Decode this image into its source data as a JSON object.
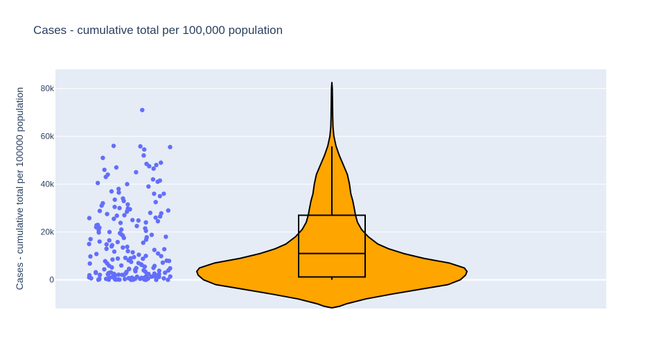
{
  "chart_data": {
    "type": "violin",
    "title": "Cases - cumulative total per 100,000 population",
    "ylabel": "Cases - cumulative total per 100000 population",
    "xlabel": "",
    "ylim": [
      -12000,
      88000
    ],
    "yticks": [
      {
        "value": 0,
        "label": "0"
      },
      {
        "value": 20000,
        "label": "20k"
      },
      {
        "value": 40000,
        "label": "40k"
      },
      {
        "value": 60000,
        "label": "60k"
      },
      {
        "value": 80000,
        "label": "80k"
      }
    ],
    "grid": true,
    "legend": "none",
    "violin": {
      "fill": "#FFA500",
      "line": "#000000",
      "kde_max_value": 82500,
      "kde_min_value": -11700,
      "max_half_width_at": 3500,
      "profile": [
        [
          -11700,
          0.0
        ],
        [
          -11000,
          0.06
        ],
        [
          -10000,
          0.11
        ],
        [
          -8000,
          0.25
        ],
        [
          -6000,
          0.44
        ],
        [
          -4000,
          0.65
        ],
        [
          -2000,
          0.86
        ],
        [
          0,
          0.95
        ],
        [
          2000,
          0.99
        ],
        [
          3500,
          1.0
        ],
        [
          5000,
          0.98
        ],
        [
          7000,
          0.87
        ],
        [
          9000,
          0.68
        ],
        [
          11000,
          0.53
        ],
        [
          13000,
          0.42
        ],
        [
          15000,
          0.34
        ],
        [
          18000,
          0.27
        ],
        [
          21000,
          0.22
        ],
        [
          24000,
          0.19
        ],
        [
          27000,
          0.175
        ],
        [
          30000,
          0.165
        ],
        [
          33000,
          0.155
        ],
        [
          36000,
          0.14
        ],
        [
          40000,
          0.13
        ],
        [
          44000,
          0.115
        ],
        [
          48000,
          0.085
        ],
        [
          52000,
          0.055
        ],
        [
          56000,
          0.03
        ],
        [
          60000,
          0.015
        ],
        [
          64000,
          0.008
        ],
        [
          68000,
          0.006
        ],
        [
          72000,
          0.005
        ],
        [
          76000,
          0.004
        ],
        [
          80000,
          0.003
        ],
        [
          82500,
          0.0
        ]
      ]
    },
    "box": {
      "q1": 1200,
      "median": 11000,
      "q3": 27000,
      "lower_fence": 0,
      "upper_fence": 55800,
      "line": "#000000"
    },
    "points": {
      "color": "#636efa",
      "values": [
        71000,
        56000,
        55800,
        55500,
        54500,
        52000,
        51000,
        49000,
        48500,
        48000,
        47500,
        47000,
        46500,
        46000,
        45000,
        44000,
        43000,
        42000,
        41500,
        41000,
        40500,
        40000,
        39000,
        38000,
        37000,
        36500,
        36000,
        35000,
        34000,
        33000,
        32500,
        32000,
        31000,
        30500,
        30000,
        29500,
        29000,
        28500,
        28000,
        27500,
        27000,
        26500,
        26000,
        25500,
        25000,
        24500,
        24000,
        23000,
        22500,
        22000,
        21500,
        21000,
        20500,
        20000,
        19500,
        19000,
        18500,
        18000,
        17500,
        17000,
        16500,
        16000,
        15500,
        15000,
        14500,
        14000,
        13500,
        13000,
        12500,
        12000,
        11500,
        11000,
        10500,
        10000,
        9800,
        9500,
        9200,
        9000,
        8800,
        8500,
        8200,
        8000,
        7800,
        7500,
        7200,
        7000,
        6800,
        6500,
        6200,
        6000,
        5800,
        5500,
        5200,
        5000,
        4800,
        4600,
        4400,
        4200,
        4000,
        3800,
        3600,
        3400,
        3200,
        3000,
        2900,
        2800,
        2700,
        2600,
        2500,
        2400,
        2300,
        2200,
        2100,
        2000,
        1900,
        1800,
        1700,
        1600,
        1500,
        1400,
        1300,
        1200,
        1100,
        1000,
        950,
        900,
        850,
        800,
        750,
        700,
        650,
        600,
        550,
        500,
        450,
        400,
        350,
        300,
        250,
        200,
        150,
        100,
        80,
        60,
        40,
        20,
        10,
        5,
        2,
        0,
        36000,
        33500,
        31500,
        29800,
        28800,
        27800,
        26800,
        25800,
        24800,
        23800,
        22800,
        21800,
        20800,
        19800,
        18800,
        17800,
        16800,
        15800,
        14800,
        13800,
        12800,
        11800,
        10800,
        9900,
        8900,
        7900,
        6900,
        5900,
        4900,
        3900,
        2950,
        2450,
        1950,
        1450,
        1150,
        850,
        550,
        350,
        150,
        50,
        3100,
        2050,
        1350,
        650,
        250,
        4500,
        3300,
        2150,
        1250,
        450
      ]
    }
  }
}
